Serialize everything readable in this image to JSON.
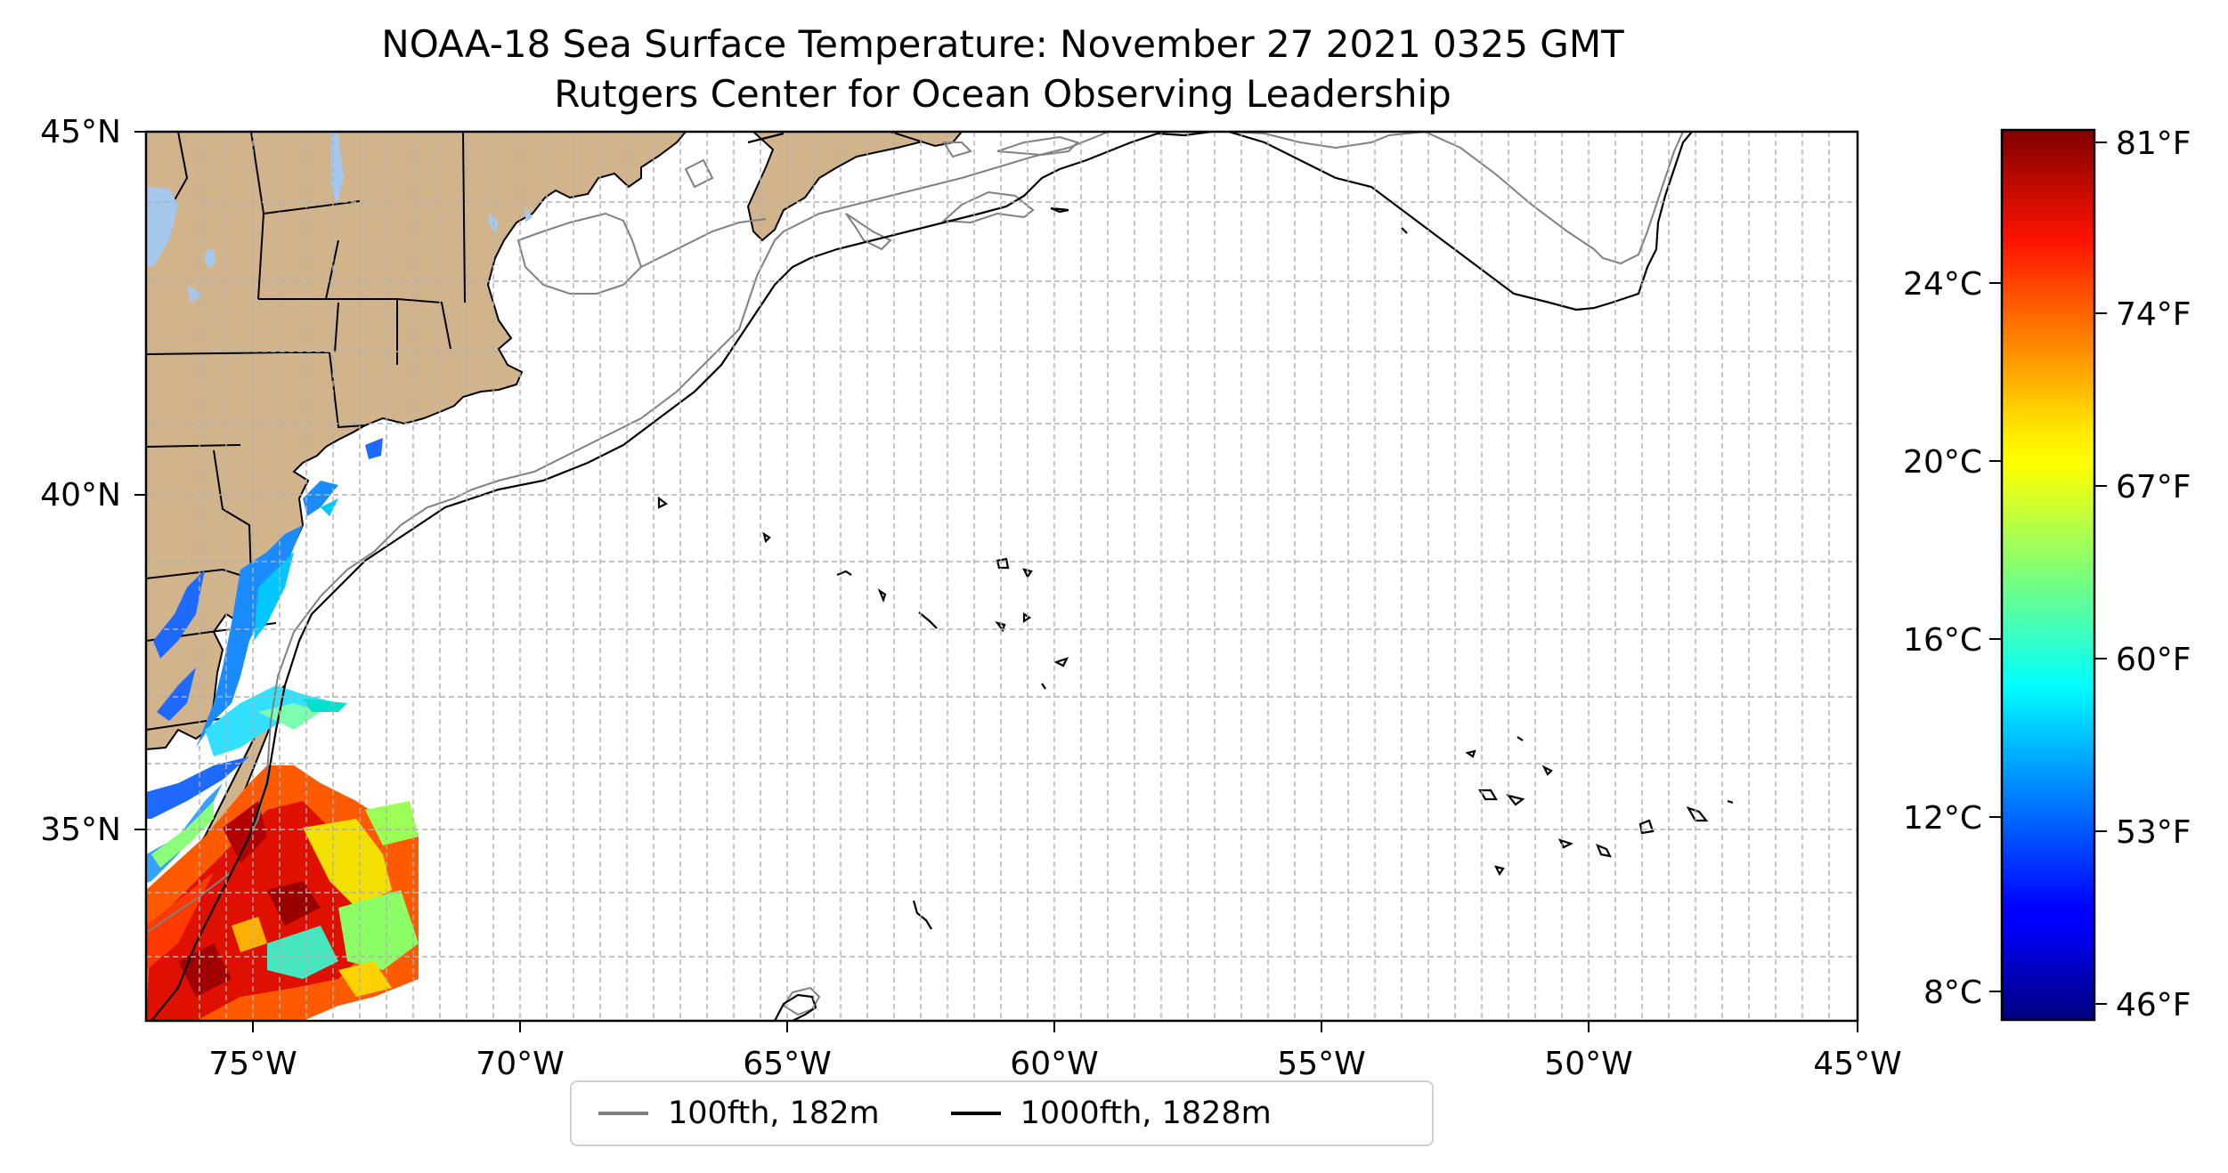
{
  "title": "NOAA-18 Sea Surface Temperature: November 27 2021 0325 GMT",
  "subtitle": "Rutgers Center for Ocean Observing Leadership",
  "map": {
    "type": "sea-surface-temperature map",
    "longitude_range": [
      -77,
      -45
    ],
    "latitude_range": [
      32.5,
      45
    ],
    "lon_tick_labels": [
      "75°W",
      "70°W",
      "65°W",
      "60°W",
      "55°W",
      "50°W",
      "45°W"
    ],
    "lat_tick_labels": [
      "35°N",
      "40°N",
      "45°N"
    ],
    "land_color": "#d2b48c",
    "lake_color": "#a6c8ec",
    "grid": true
  },
  "colorbar": {
    "colormap": "jet",
    "celsius_labels": [
      "8°C",
      "12°C",
      "16°C",
      "20°C",
      "24°C"
    ],
    "fahrenheit_labels": [
      "46°F",
      "53°F",
      "60°F",
      "67°F",
      "74°F",
      "81°F"
    ]
  },
  "legend": {
    "items": [
      {
        "label": "100fth, 182m",
        "color": "#808080"
      },
      {
        "label": "1000fth, 1828m",
        "color": "#000000"
      }
    ]
  }
}
